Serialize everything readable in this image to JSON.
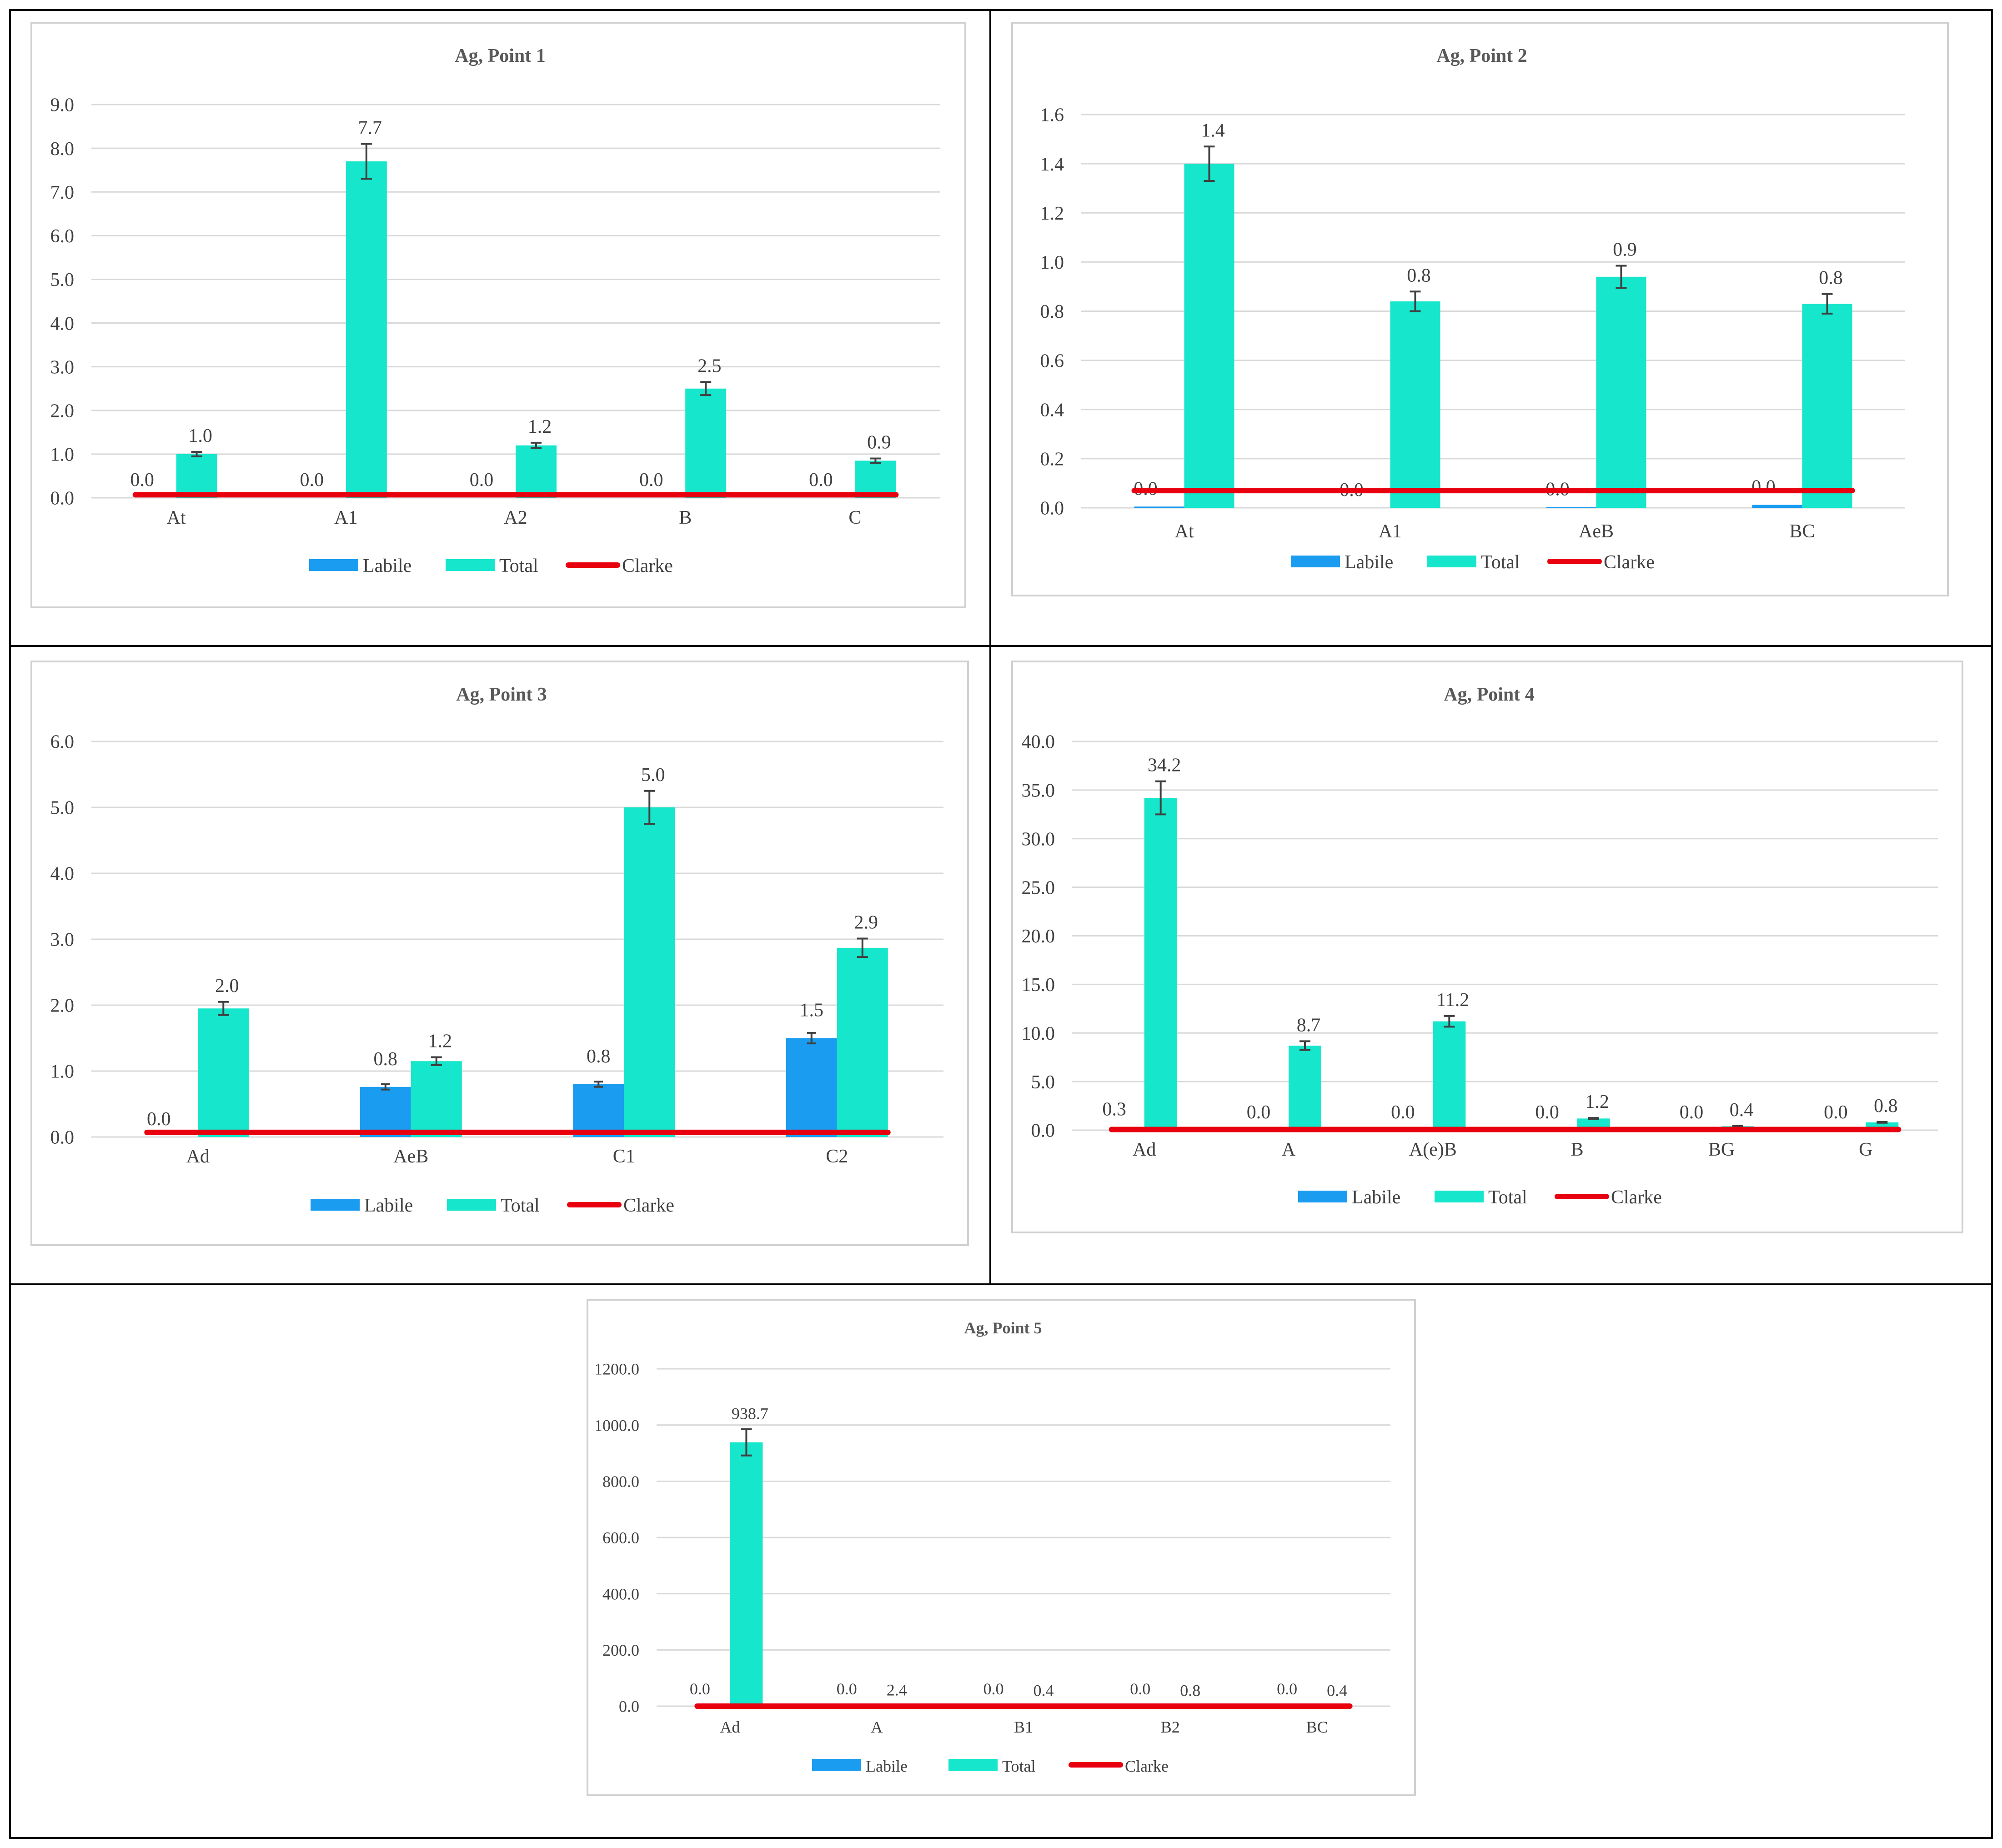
{
  "colors": {
    "labile": "#1a9cf0",
    "total": "#15e6cc",
    "clarke": "#e8000f",
    "grid": "#d9d9d9",
    "text": "#404040"
  },
  "chart_data": [
    {
      "type": "bar",
      "title": "Ag, Point 1",
      "categories": [
        "At",
        "A1",
        "A2",
        "B",
        "C"
      ],
      "series": [
        {
          "name": "Labile",
          "values": [
            0.0,
            0.0,
            0.0,
            0.0,
            0.0
          ],
          "labels": [
            "0.0",
            "0.0",
            "0.0",
            "0.0",
            "0.0"
          ]
        },
        {
          "name": "Total",
          "values": [
            1.0,
            7.7,
            1.2,
            2.5,
            0.85
          ],
          "labels": [
            "1.0",
            "7.7",
            "1.2",
            "2.5",
            "0.9"
          ],
          "errors": [
            0.05,
            0.4,
            0.06,
            0.15,
            0.05
          ]
        },
        {
          "name": "Clarke",
          "values": [
            0.07,
            0.07,
            0.07,
            0.07,
            0.07
          ]
        }
      ],
      "ylim": [
        0,
        9
      ],
      "yticks": [
        "0.0",
        "1.0",
        "2.0",
        "3.0",
        "4.0",
        "5.0",
        "6.0",
        "7.0",
        "8.0",
        "9.0"
      ],
      "legend": [
        "Labile",
        "Total",
        "Clarke"
      ]
    },
    {
      "type": "bar",
      "title": "Ag, Point 2",
      "categories": [
        "At",
        "A1",
        "AeB",
        "BC"
      ],
      "series": [
        {
          "name": "Labile",
          "values": [
            0.005,
            0.0,
            0.003,
            0.012
          ],
          "labels": [
            "0.0",
            "0.0",
            "0.0",
            "0.0"
          ]
        },
        {
          "name": "Total",
          "values": [
            1.4,
            0.84,
            0.94,
            0.83
          ],
          "labels": [
            "1.4",
            "0.8",
            "0.9",
            "0.8"
          ],
          "errors": [
            0.07,
            0.04,
            0.045,
            0.04
          ]
        },
        {
          "name": "Clarke",
          "values": [
            0.07,
            0.07,
            0.07,
            0.07
          ]
        }
      ],
      "ylim": [
        0,
        1.6
      ],
      "yticks": [
        "0.0",
        "0.2",
        "0.4",
        "0.6",
        "0.8",
        "1.0",
        "1.2",
        "1.4",
        "1.6"
      ],
      "legend": [
        "Labile",
        "Total",
        "Clarke"
      ]
    },
    {
      "type": "bar",
      "title": "Ag, Point 3",
      "categories": [
        "Ad",
        "AeB",
        "C1",
        "C2"
      ],
      "series": [
        {
          "name": "Labile",
          "values": [
            0.0,
            0.76,
            0.8,
            1.5
          ],
          "labels": [
            "0.0",
            "0.8",
            "0.8",
            "1.5"
          ],
          "errors": [
            0,
            0.04,
            0.04,
            0.08
          ]
        },
        {
          "name": "Total",
          "values": [
            1.95,
            1.15,
            5.0,
            2.87
          ],
          "labels": [
            "2.0",
            "1.2",
            "5.0",
            "2.9"
          ],
          "errors": [
            0.1,
            0.06,
            0.25,
            0.14
          ]
        },
        {
          "name": "Clarke",
          "values": [
            0.07,
            0.07,
            0.07,
            0.07
          ]
        }
      ],
      "ylim": [
        0,
        6
      ],
      "yticks": [
        "0.0",
        "1.0",
        "2.0",
        "3.0",
        "4.0",
        "5.0",
        "6.0"
      ],
      "legend": [
        "Labile",
        "Total",
        "Clarke"
      ]
    },
    {
      "type": "bar",
      "title": "Ag, Point 4",
      "categories": [
        "Ad",
        "A",
        "A(e)B",
        "B",
        "BG",
        "G"
      ],
      "series": [
        {
          "name": "Labile",
          "values": [
            0.3,
            0.0,
            0.0,
            0.0,
            0.0,
            0.0
          ],
          "labels": [
            "0.3",
            "0.0",
            "0.0",
            "0.0",
            "0.0",
            "0.0"
          ]
        },
        {
          "name": "Total",
          "values": [
            34.2,
            8.7,
            11.2,
            1.2,
            0.4,
            0.8
          ],
          "labels": [
            "34.2",
            "8.7",
            "11.2",
            "1.2",
            "0.4",
            "0.8"
          ],
          "errors": [
            1.7,
            0.45,
            0.55,
            0.06,
            0.02,
            0.04
          ]
        },
        {
          "name": "Clarke",
          "values": [
            0.07,
            0.07,
            0.07,
            0.07,
            0.07,
            0.07
          ]
        }
      ],
      "ylim": [
        0,
        40
      ],
      "yticks": [
        "0.0",
        "5.0",
        "10.0",
        "15.0",
        "20.0",
        "25.0",
        "30.0",
        "35.0",
        "40.0"
      ],
      "legend": [
        "Labile",
        "Total",
        "Clarke"
      ]
    },
    {
      "type": "bar",
      "title": "Ag, Point 5",
      "categories": [
        "Ad",
        "A",
        "B1",
        "B2",
        "BC"
      ],
      "series": [
        {
          "name": "Labile",
          "values": [
            0.0,
            0.0,
            0.0,
            0.0,
            0.0
          ],
          "labels": [
            "0.0",
            "0.0",
            "0.0",
            "0.0",
            "0.0"
          ]
        },
        {
          "name": "Total",
          "values": [
            938.7,
            2.4,
            0.4,
            0.8,
            0.4
          ],
          "labels": [
            "938.7",
            "2.4",
            "0.4",
            "0.8",
            "0.4"
          ],
          "errors": [
            47,
            0.1,
            0.02,
            0.04,
            0.02
          ]
        },
        {
          "name": "Clarke",
          "values": [
            0.07,
            0.07,
            0.07,
            0.07,
            0.07
          ]
        }
      ],
      "ylim": [
        0,
        1200
      ],
      "yticks": [
        "0.0",
        "200.0",
        "400.0",
        "600.0",
        "800.0",
        "1000.0",
        "1200.0"
      ],
      "legend": [
        "Labile",
        "Total",
        "Clarke"
      ]
    }
  ]
}
